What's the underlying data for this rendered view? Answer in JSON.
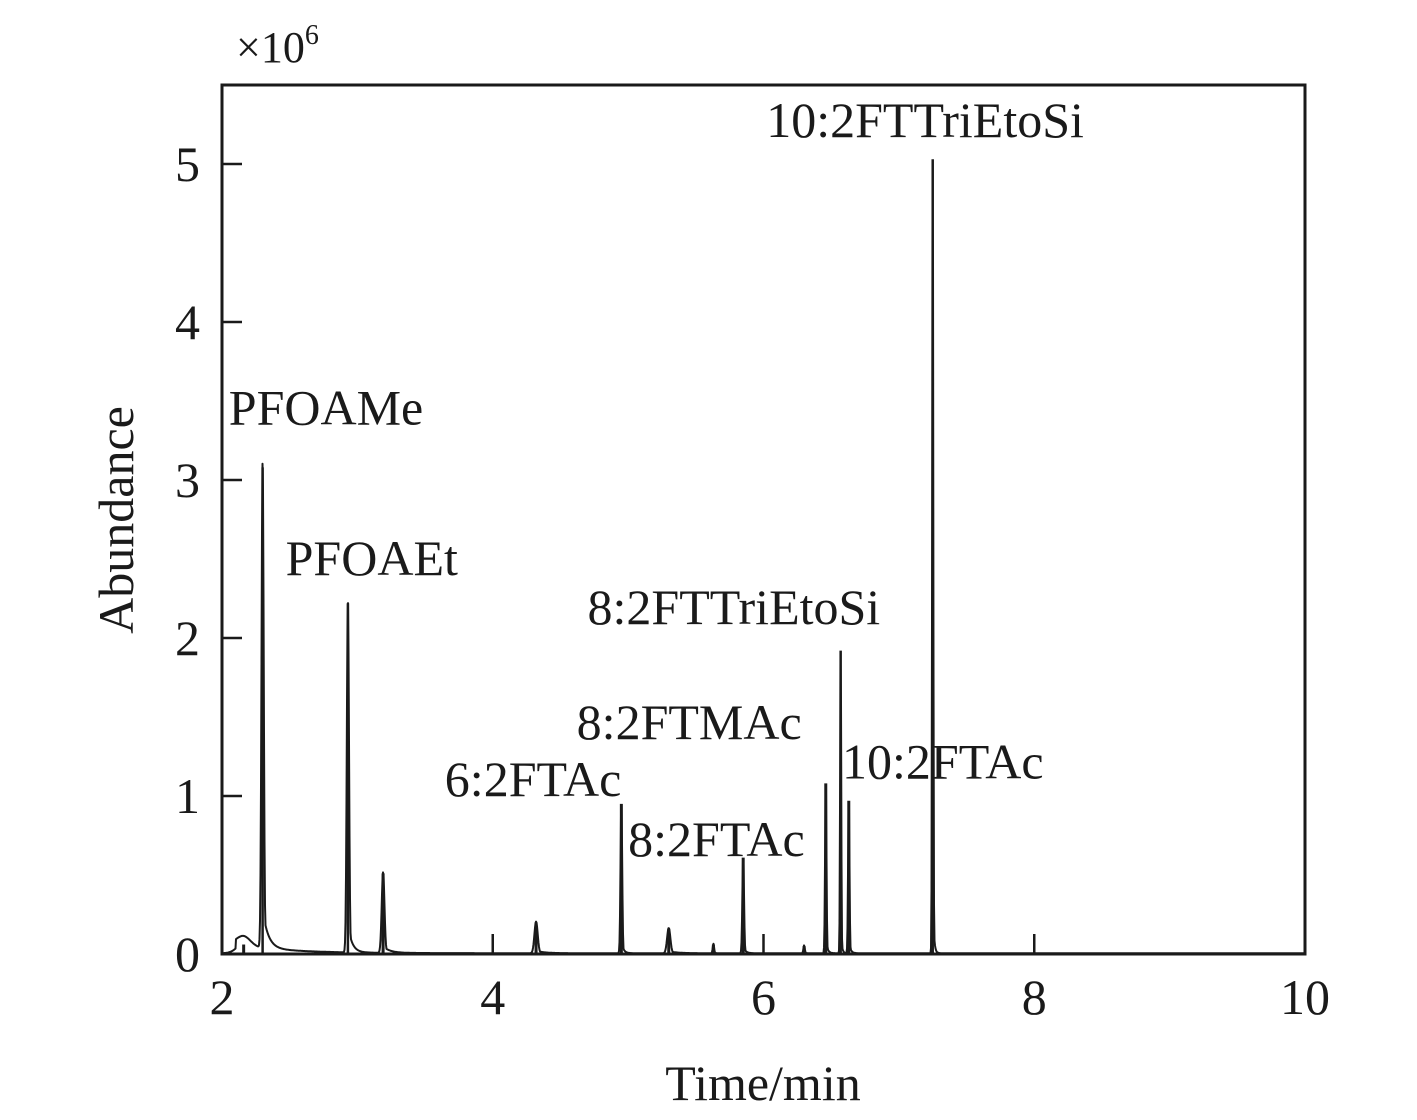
{
  "chart_data": {
    "type": "line",
    "title": "",
    "xlabel": "Time/min",
    "ylabel": "Abundance",
    "y_multiplier": {
      "base": "×10",
      "exponent": "6"
    },
    "xlim": [
      2,
      10
    ],
    "ylim": [
      0,
      5.5
    ],
    "xticks": [
      2,
      4,
      6,
      8,
      10
    ],
    "yticks": [
      0,
      1,
      2,
      3,
      4,
      5
    ],
    "grid": false,
    "peaks": [
      {
        "x": 2.16,
        "y": 0.06,
        "width": 0.05,
        "tail": 0.1,
        "label": ""
      },
      {
        "x": 2.3,
        "y": 3.08,
        "width": 0.008,
        "tail": 0.04,
        "label": "PFOAMe"
      },
      {
        "x": 2.93,
        "y": 2.22,
        "width": 0.008,
        "tail": 0.03,
        "label": "PFOAEt"
      },
      {
        "x": 3.19,
        "y": 0.51,
        "width": 0.01,
        "tail": 0.05,
        "label": ""
      },
      {
        "x": 4.32,
        "y": 0.2,
        "width": 0.012,
        "tail": 0.06,
        "label": ""
      },
      {
        "x": 4.95,
        "y": 0.95,
        "width": 0.006,
        "tail": 0.015,
        "label": "6:2FTAc"
      },
      {
        "x": 5.3,
        "y": 0.16,
        "width": 0.012,
        "tail": 0.06,
        "label": ""
      },
      {
        "x": 5.63,
        "y": 0.06,
        "width": 0.005,
        "tail": 0.01,
        "label": ""
      },
      {
        "x": 5.85,
        "y": 0.61,
        "width": 0.006,
        "tail": 0.015,
        "label": "8:2FTAc"
      },
      {
        "x": 6.3,
        "y": 0.05,
        "width": 0.005,
        "tail": 0.01,
        "label": ""
      },
      {
        "x": 6.46,
        "y": 1.08,
        "width": 0.005,
        "tail": 0.012,
        "label": "8:2FTMAc"
      },
      {
        "x": 6.57,
        "y": 1.92,
        "width": 0.004,
        "tail": 0.008,
        "label": "8:2FTTriEtoSi"
      },
      {
        "x": 6.63,
        "y": 0.97,
        "width": 0.005,
        "tail": 0.012,
        "label": "10:2FTAc"
      },
      {
        "x": 7.25,
        "y": 5.03,
        "width": 0.004,
        "tail": 0.008,
        "label": "10:2FTTriEtoSi"
      }
    ],
    "annotations": [
      {
        "text": "PFOAMe",
        "x": 2.05,
        "y": 3.35,
        "anchor": "start"
      },
      {
        "text": "PFOAEt",
        "x": 2.47,
        "y": 2.4,
        "anchor": "start"
      },
      {
        "text": "6:2FTAc",
        "x": 4.95,
        "y": 1.0,
        "anchor": "end"
      },
      {
        "text": "8:2FTAc",
        "x": 5.0,
        "y": 0.62,
        "anchor": "start"
      },
      {
        "text": "8:2FTMAc",
        "x": 4.62,
        "y": 1.36,
        "anchor": "start"
      },
      {
        "text": "8:2FTTriEtoSi",
        "x": 4.7,
        "y": 2.09,
        "anchor": "start"
      },
      {
        "text": "10:2FTAc",
        "x": 6.58,
        "y": 1.11,
        "anchor": "start"
      },
      {
        "text": "10:2FTTriEtoSi",
        "x": 6.02,
        "y": 5.17,
        "anchor": "start"
      }
    ]
  }
}
